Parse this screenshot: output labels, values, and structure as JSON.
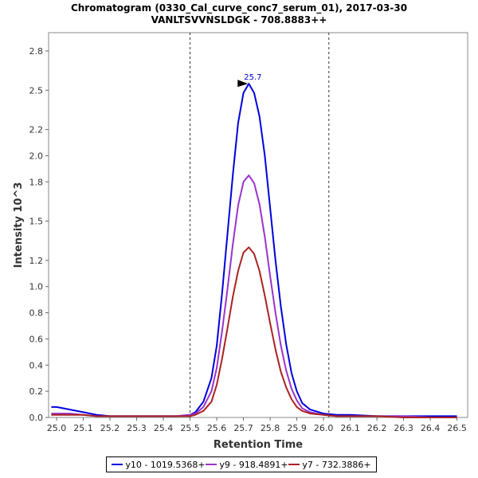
{
  "chart_data": {
    "type": "line",
    "title": "Chromatogram (0330_Cal_curve_conc7_serum_01), 2017-03-30",
    "subtitle": "VANLTSVVNSLDGK - 708.8883++",
    "xlabel": "Retention Time",
    "ylabel": "Intensity 10^3",
    "xlim": [
      24.97,
      26.54
    ],
    "ylim": [
      0.0,
      2.94
    ],
    "xticks": [
      "25.0",
      "25.1",
      "25.2",
      "25.3",
      "25.4",
      "25.5",
      "25.6",
      "25.7",
      "25.8",
      "25.9",
      "26.0",
      "26.1",
      "26.2",
      "26.3",
      "26.4",
      "26.5"
    ],
    "yticks": [
      "0.0",
      "0.2",
      "0.4",
      "0.6",
      "0.8",
      "1.0",
      "1.2",
      "1.5",
      "1.8",
      "2.0",
      "2.2",
      "2.5",
      "2.8"
    ],
    "integration_bounds": [
      25.5,
      26.02
    ],
    "peak_label": "25.7",
    "peak_label_x": 25.72,
    "peak_label_y": 2.55,
    "series": [
      {
        "name": "y10 - 1019.5368+",
        "color": "#0000dd",
        "x": [
          24.98,
          25.0,
          25.05,
          25.1,
          25.15,
          25.2,
          25.3,
          25.4,
          25.45,
          25.5,
          25.52,
          25.55,
          25.58,
          25.6,
          25.62,
          25.64,
          25.66,
          25.68,
          25.7,
          25.72,
          25.74,
          25.76,
          25.78,
          25.8,
          25.82,
          25.84,
          25.86,
          25.88,
          25.9,
          25.92,
          25.95,
          26.0,
          26.05,
          26.1,
          26.2,
          26.3,
          26.4,
          26.5
        ],
        "y": [
          0.08,
          0.08,
          0.06,
          0.04,
          0.02,
          0.01,
          0.01,
          0.01,
          0.01,
          0.02,
          0.04,
          0.12,
          0.3,
          0.55,
          0.95,
          1.4,
          1.85,
          2.25,
          2.48,
          2.55,
          2.48,
          2.3,
          2.0,
          1.6,
          1.2,
          0.85,
          0.56,
          0.34,
          0.2,
          0.11,
          0.06,
          0.03,
          0.02,
          0.02,
          0.01,
          0.01,
          0.01,
          0.01
        ]
      },
      {
        "name": "y9 - 918.4891+",
        "color": "#9933cc",
        "x": [
          24.98,
          25.0,
          25.05,
          25.1,
          25.15,
          25.2,
          25.3,
          25.4,
          25.45,
          25.5,
          25.52,
          25.55,
          25.58,
          25.6,
          25.62,
          25.64,
          25.66,
          25.68,
          25.7,
          25.72,
          25.74,
          25.76,
          25.78,
          25.8,
          25.82,
          25.84,
          25.86,
          25.88,
          25.9,
          25.92,
          25.95,
          26.0,
          26.05,
          26.1,
          26.2,
          26.3,
          26.4,
          26.5
        ],
        "y": [
          0.03,
          0.03,
          0.03,
          0.02,
          0.01,
          0.01,
          0.01,
          0.01,
          0.01,
          0.02,
          0.03,
          0.08,
          0.2,
          0.38,
          0.66,
          0.98,
          1.32,
          1.62,
          1.8,
          1.85,
          1.79,
          1.63,
          1.38,
          1.08,
          0.8,
          0.55,
          0.36,
          0.22,
          0.13,
          0.07,
          0.04,
          0.02,
          0.01,
          0.01,
          0.01,
          0.01,
          0.0,
          0.0
        ]
      },
      {
        "name": "y7 - 732.3886+",
        "color": "#aa2222",
        "x": [
          24.98,
          25.0,
          25.05,
          25.1,
          25.15,
          25.2,
          25.3,
          25.4,
          25.45,
          25.5,
          25.52,
          25.55,
          25.58,
          25.6,
          25.62,
          25.64,
          25.66,
          25.68,
          25.7,
          25.72,
          25.74,
          25.76,
          25.78,
          25.8,
          25.82,
          25.84,
          25.86,
          25.88,
          25.9,
          25.92,
          25.95,
          26.0,
          26.05,
          26.1,
          26.2,
          26.3,
          26.4,
          26.5
        ],
        "y": [
          0.02,
          0.02,
          0.02,
          0.02,
          0.01,
          0.01,
          0.01,
          0.01,
          0.01,
          0.01,
          0.02,
          0.05,
          0.12,
          0.25,
          0.45,
          0.68,
          0.92,
          1.12,
          1.26,
          1.3,
          1.25,
          1.12,
          0.93,
          0.72,
          0.52,
          0.35,
          0.23,
          0.14,
          0.08,
          0.05,
          0.03,
          0.02,
          0.01,
          0.01,
          0.01,
          0.0,
          0.0,
          0.0
        ]
      }
    ]
  }
}
